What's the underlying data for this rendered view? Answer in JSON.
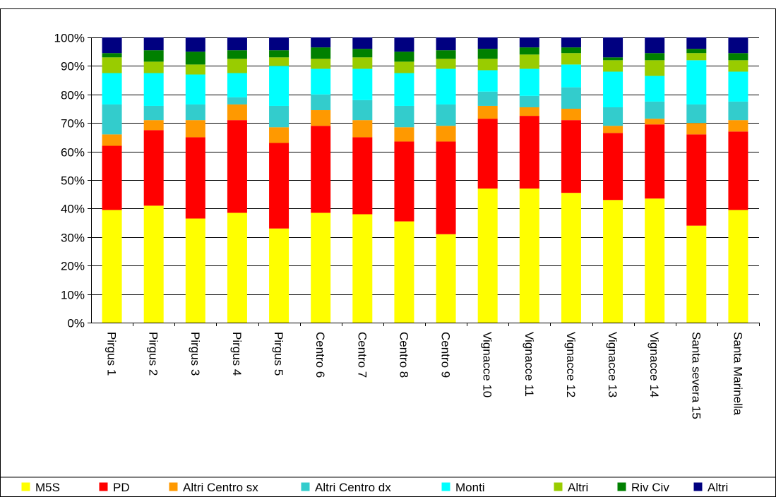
{
  "chart_data": {
    "type": "bar",
    "stacked": true,
    "title": "",
    "xlabel": "",
    "ylabel": "",
    "ylim": [
      0,
      100
    ],
    "y_tick_labels": [
      "0%",
      "10%",
      "20%",
      "30%",
      "40%",
      "50%",
      "60%",
      "70%",
      "80%",
      "90%",
      "100%"
    ],
    "grid": true,
    "legend_position": "bottom",
    "categories": [
      "Pirgus 1",
      "Pirgus 2",
      "Pirgus 3",
      "Pirgus 4",
      "Pirgus 5",
      "Centro 6",
      "Centro 7",
      "Centro 8",
      "Centro 9",
      "Vignacce 10",
      "Vignacce 11",
      "Vignacce 12",
      "Vignacce 13",
      "Vignacce 14",
      "Santa severa 15",
      "Santa Marinella"
    ],
    "series": [
      {
        "name": "M5S",
        "color": "#ffff00",
        "values": [
          39.5,
          41,
          36.5,
          38.5,
          33,
          38.5,
          38,
          35.5,
          31,
          47,
          47,
          45.5,
          43,
          43.5,
          34,
          39.5
        ]
      },
      {
        "name": "PD",
        "color": "#ff0000",
        "values": [
          22.5,
          26.5,
          28.5,
          32.5,
          30,
          30.5,
          27,
          28,
          32.5,
          24.5,
          25.5,
          25.5,
          23.5,
          26,
          32,
          27.5
        ]
      },
      {
        "name": "Altri Centro sx",
        "color": "#ff9900",
        "values": [
          4,
          3.5,
          6,
          5.5,
          5.5,
          5.5,
          6,
          5,
          5.5,
          4.5,
          3,
          4,
          2.5,
          2,
          4,
          4
        ]
      },
      {
        "name": "Altri Centro dx",
        "color": "#33cccc",
        "values": [
          10.5,
          5,
          5.5,
          2.5,
          7.5,
          5.5,
          7,
          7.5,
          7.5,
          5,
          4,
          7.5,
          6.5,
          6,
          6.5,
          6.5
        ]
      },
      {
        "name": "Monti",
        "color": "#00ffff",
        "values": [
          11,
          11.5,
          10.5,
          8.5,
          14,
          9,
          11,
          11.5,
          12.5,
          7.5,
          9.5,
          8,
          12.5,
          9,
          15.5,
          10.5
        ]
      },
      {
        "name": "Altri",
        "color": "#99cc00",
        "values": [
          5.5,
          4,
          3.5,
          5,
          3,
          3.5,
          4,
          4,
          3.5,
          4,
          5,
          4,
          4,
          5.5,
          2.5,
          4
        ]
      },
      {
        "name": "Riv Civ",
        "color": "#008000",
        "values": [
          1.5,
          4,
          4.5,
          3,
          2.5,
          4,
          3,
          3.5,
          3,
          3.5,
          2.5,
          2,
          1,
          2.5,
          1.5,
          2.5
        ]
      },
      {
        "name": "Altri",
        "color": "#000080",
        "values": [
          5.5,
          4.5,
          5,
          4.5,
          4.5,
          3.5,
          4,
          5,
          4.5,
          4,
          3.5,
          3.5,
          7,
          5.5,
          4,
          5.5
        ]
      }
    ]
  }
}
